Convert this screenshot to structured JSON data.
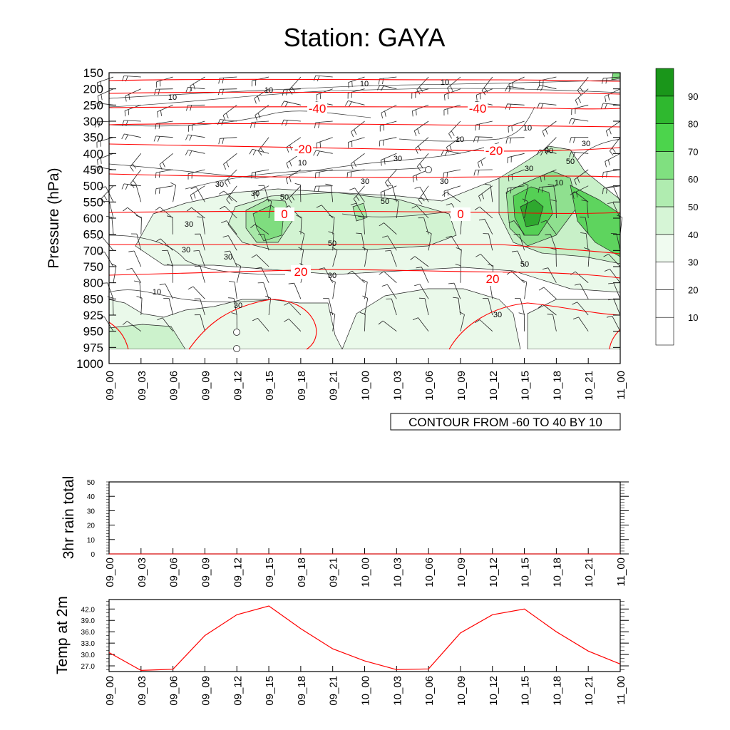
{
  "title": "Station: GAYA",
  "times": [
    "09_00",
    "09_03",
    "09_06",
    "09_09",
    "09_12",
    "09_15",
    "09_18",
    "09_21",
    "10_00",
    "10_03",
    "10_06",
    "10_09",
    "10_12",
    "10_15",
    "10_18",
    "10_21",
    "11_00"
  ],
  "panels": {
    "main": {
      "ylabel": "Pressure (hPa)",
      "levels": [
        "150",
        "200",
        "250",
        "300",
        "350",
        "400",
        "450",
        "500",
        "550",
        "600",
        "650",
        "700",
        "750",
        "800",
        "850",
        "925",
        "950",
        "975",
        "1000"
      ],
      "footer": "CONTOUR FROM -60 TO 40 BY 10",
      "colorbar": {
        "labels": [
          "10",
          "20",
          "30",
          "40",
          "50",
          "60",
          "70",
          "80",
          "90"
        ],
        "colors": [
          "#ffffff",
          "#ffffff",
          "#ffffff",
          "#f0fbf0",
          "#d6f5d6",
          "#b0ecb0",
          "#80e080",
          "#4cd44c",
          "#2fb82f",
          "#1a961a"
        ]
      },
      "temp_labels": [
        "-40",
        "-40",
        "-20",
        "-20",
        "0",
        "0",
        "20",
        "20"
      ],
      "rh_labels": [
        "10",
        "10",
        "10",
        "10",
        "10",
        "10",
        "30",
        "30",
        "30",
        "30",
        "30",
        "50",
        "50",
        "50",
        "30",
        "50",
        "30",
        "30",
        "10",
        "30"
      ]
    },
    "rain": {
      "ylabel": "3hr rain total",
      "yticks": [
        "0",
        "10",
        "20",
        "30",
        "40",
        "50"
      ]
    },
    "temp": {
      "ylabel": "Temp at 2m",
      "yticks": [
        "27.0",
        "30.0",
        "33.0",
        "36.0",
        "39.0",
        "42.0"
      ]
    }
  },
  "chart_data": [
    {
      "type": "heatmap",
      "title": "Station: GAYA",
      "ylabel": "Pressure (hPa)",
      "x": [
        "09_00",
        "09_03",
        "09_06",
        "09_09",
        "09_12",
        "09_15",
        "09_18",
        "09_21",
        "10_00",
        "10_03",
        "10_06",
        "10_09",
        "10_12",
        "10_15",
        "10_18",
        "10_21",
        "11_00"
      ],
      "y": [
        150,
        200,
        250,
        300,
        350,
        400,
        450,
        500,
        550,
        600,
        650,
        700,
        750,
        800,
        850,
        925,
        950,
        975,
        1000
      ],
      "fill_variable_levels": [
        10,
        20,
        30,
        40,
        50,
        60,
        70,
        80,
        90
      ],
      "contour_levels": [
        -40,
        -20,
        0,
        20
      ],
      "contour_range": [
        -60,
        40
      ],
      "contour_interval": 10
    },
    {
      "type": "line",
      "ylabel": "3hr rain total",
      "x": [
        "09_00",
        "09_03",
        "09_06",
        "09_09",
        "09_12",
        "09_15",
        "09_18",
        "09_21",
        "10_00",
        "10_03",
        "10_06",
        "10_09",
        "10_12",
        "10_15",
        "10_18",
        "10_21",
        "11_00"
      ],
      "values": [
        0,
        0,
        0,
        0,
        0,
        0,
        0,
        0,
        0,
        0,
        0,
        0,
        0,
        0,
        0,
        0,
        0
      ],
      "ylim": [
        0,
        50
      ]
    },
    {
      "type": "line",
      "ylabel": "Temp at 2m",
      "x": [
        "09_00",
        "09_03",
        "09_06",
        "09_09",
        "09_12",
        "09_15",
        "09_18",
        "09_21",
        "10_00",
        "10_03",
        "10_06",
        "10_09",
        "10_12",
        "10_15",
        "10_18",
        "10_21",
        "11_00"
      ],
      "values": [
        30.5,
        25.8,
        26.1,
        35.0,
        40.5,
        42.8,
        36.8,
        31.5,
        28.3,
        26.0,
        26.2,
        35.7,
        40.5,
        42.0,
        36.0,
        30.9,
        27.5
      ],
      "ylim": [
        25.5,
        44.5
      ],
      "color": "#ff0000"
    }
  ]
}
